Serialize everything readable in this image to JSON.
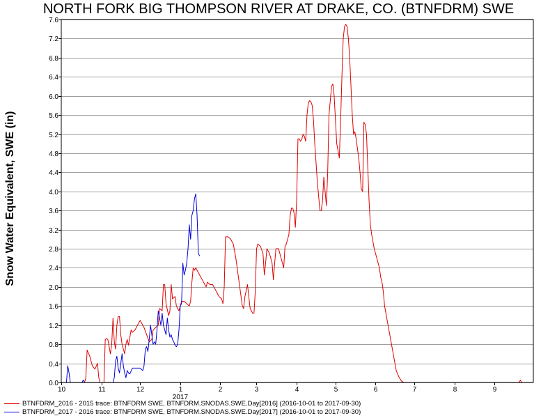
{
  "chart_data": {
    "type": "line",
    "title": "NORTH FORK BIG THOMPSON RIVER AT DRAKE, CO. (BTNFDRM) SWE",
    "ylabel": "Snow Water Equivalent, SWE (in)",
    "xlabel": "",
    "ylim": [
      0,
      7.6
    ],
    "xlim": [
      "2016-10-01",
      "2017-09-30"
    ],
    "y_ticks": [
      "0.0",
      "0.4",
      "0.8",
      "1.2",
      "1.6",
      "2.0",
      "2.4",
      "2.8",
      "3.2",
      "3.6",
      "4.0",
      "4.4",
      "4.8",
      "5.2",
      "5.6",
      "6.0",
      "6.4",
      "6.8",
      "7.2",
      "7.6"
    ],
    "x_ticks": [
      {
        "date": "2016-10-01",
        "label": "10"
      },
      {
        "date": "2016-11-01",
        "label": "11"
      },
      {
        "date": "2016-12-01",
        "label": "12"
      },
      {
        "date": "2017-01-01",
        "label": "1"
      },
      {
        "date": "2017-02-01",
        "label": "2"
      },
      {
        "date": "2017-03-01",
        "label": "3"
      },
      {
        "date": "2017-04-01",
        "label": "4"
      },
      {
        "date": "2017-05-01",
        "label": "5"
      },
      {
        "date": "2017-06-01",
        "label": "6"
      },
      {
        "date": "2017-07-01",
        "label": "7"
      },
      {
        "date": "2017-08-01",
        "label": "8"
      },
      {
        "date": "2017-09-01",
        "label": "9"
      }
    ],
    "year_label": {
      "date": "2017-01-01",
      "label": "2017"
    },
    "grid": true,
    "legend_position": "bottom",
    "series": [
      {
        "name": "BTNFDRM_2016 - 2015 trace: BTNFDRM SWE, BTNFDRM.SNODAS.SWE.Day[2016] (2016-10-01 to 2017-09-30)",
        "color": "#e00000",
        "points": [
          [
            "2016-10-01",
            0
          ],
          [
            "2016-10-19",
            0
          ],
          [
            "2016-10-20",
            0.1
          ],
          [
            "2016-10-21",
            0.68
          ],
          [
            "2016-10-23",
            0.55
          ],
          [
            "2016-10-25",
            0.35
          ],
          [
            "2016-10-27",
            0.28
          ],
          [
            "2016-10-29",
            0.4
          ],
          [
            "2016-10-30",
            0.1
          ],
          [
            "2016-10-31",
            0
          ],
          [
            "2016-11-03",
            0
          ],
          [
            "2016-11-04",
            0.9
          ],
          [
            "2016-11-05",
            0.92
          ],
          [
            "2016-11-06",
            0.9
          ],
          [
            "2016-11-07",
            0.75
          ],
          [
            "2016-11-08",
            0.6
          ],
          [
            "2016-11-09",
            0.8
          ],
          [
            "2016-11-10",
            1.35
          ],
          [
            "2016-11-11",
            0.85
          ],
          [
            "2016-11-12",
            0.7
          ],
          [
            "2016-11-13",
            1.2
          ],
          [
            "2016-11-14",
            1.38
          ],
          [
            "2016-11-15",
            1.38
          ],
          [
            "2016-11-16",
            1.0
          ],
          [
            "2016-11-17",
            0.8
          ],
          [
            "2016-11-18",
            0.7
          ],
          [
            "2016-11-19",
            0.6
          ],
          [
            "2016-11-20",
            0.8
          ],
          [
            "2016-11-21",
            0.9
          ],
          [
            "2016-11-22",
            0.78
          ],
          [
            "2016-11-24",
            1.1
          ],
          [
            "2016-11-25",
            1.05
          ],
          [
            "2016-11-27",
            1.1
          ],
          [
            "2016-11-29",
            1.2
          ],
          [
            "2016-12-01",
            1.3
          ],
          [
            "2016-12-04",
            1.15
          ],
          [
            "2016-12-06",
            1.0
          ],
          [
            "2016-12-08",
            0.85
          ],
          [
            "2016-12-10",
            0.9
          ],
          [
            "2016-12-11",
            1.1
          ],
          [
            "2016-12-13",
            1.15
          ],
          [
            "2016-12-15",
            1.2
          ],
          [
            "2016-12-16",
            1.55
          ],
          [
            "2016-12-18",
            1.5
          ],
          [
            "2016-12-19",
            2.05
          ],
          [
            "2016-12-20",
            2.05
          ],
          [
            "2016-12-21",
            1.65
          ],
          [
            "2016-12-23",
            1.4
          ],
          [
            "2016-12-24",
            1.5
          ],
          [
            "2016-12-25",
            2.05
          ],
          [
            "2016-12-26",
            1.75
          ],
          [
            "2016-12-28",
            1.8
          ],
          [
            "2016-12-29",
            1.6
          ],
          [
            "2016-12-31",
            1.5
          ],
          [
            "2017-01-02",
            1.7
          ],
          [
            "2017-01-04",
            1.7
          ],
          [
            "2017-01-06",
            1.65
          ],
          [
            "2017-01-08",
            1.6
          ],
          [
            "2017-01-09",
            1.7
          ],
          [
            "2017-01-10",
            2.1
          ],
          [
            "2017-01-11",
            2.4
          ],
          [
            "2017-01-12",
            2.35
          ],
          [
            "2017-01-13",
            2.4
          ],
          [
            "2017-01-15",
            2.3
          ],
          [
            "2017-01-17",
            2.2
          ],
          [
            "2017-01-19",
            2.1
          ],
          [
            "2017-01-21",
            2.0
          ],
          [
            "2017-01-22",
            2.1
          ],
          [
            "2017-01-24",
            2.05
          ],
          [
            "2017-01-26",
            2.05
          ],
          [
            "2017-01-27",
            2.0
          ],
          [
            "2017-01-29",
            1.9
          ],
          [
            "2017-01-31",
            1.8
          ],
          [
            "2017-02-02",
            1.75
          ],
          [
            "2017-02-03",
            1.65
          ],
          [
            "2017-02-04",
            2.0
          ],
          [
            "2017-02-05",
            3.05
          ],
          [
            "2017-02-07",
            3.05
          ],
          [
            "2017-02-09",
            3.0
          ],
          [
            "2017-02-11",
            2.9
          ],
          [
            "2017-02-13",
            2.6
          ],
          [
            "2017-02-15",
            2.2
          ],
          [
            "2017-02-17",
            1.8
          ],
          [
            "2017-02-18",
            1.6
          ],
          [
            "2017-02-19",
            1.55
          ],
          [
            "2017-02-20",
            1.8
          ],
          [
            "2017-02-22",
            2.05
          ],
          [
            "2017-02-23",
            1.8
          ],
          [
            "2017-02-24",
            1.55
          ],
          [
            "2017-02-26",
            1.45
          ],
          [
            "2017-02-27",
            1.45
          ],
          [
            "2017-02-28",
            1.9
          ],
          [
            "2017-03-01",
            2.8
          ],
          [
            "2017-03-02",
            2.9
          ],
          [
            "2017-03-04",
            2.85
          ],
          [
            "2017-03-06",
            2.7
          ],
          [
            "2017-03-07",
            2.25
          ],
          [
            "2017-03-08",
            2.5
          ],
          [
            "2017-03-09",
            2.8
          ],
          [
            "2017-03-11",
            2.7
          ],
          [
            "2017-03-13",
            2.5
          ],
          [
            "2017-03-14",
            2.15
          ],
          [
            "2017-03-15",
            2.5
          ],
          [
            "2017-03-16",
            2.8
          ],
          [
            "2017-03-18",
            2.8
          ],
          [
            "2017-03-20",
            2.6
          ],
          [
            "2017-03-22",
            2.4
          ],
          [
            "2017-03-23",
            2.85
          ],
          [
            "2017-03-24",
            2.9
          ],
          [
            "2017-03-26",
            3.1
          ],
          [
            "2017-03-27",
            3.5
          ],
          [
            "2017-03-28",
            3.65
          ],
          [
            "2017-03-29",
            3.65
          ],
          [
            "2017-03-30",
            3.55
          ],
          [
            "2017-03-31",
            3.25
          ],
          [
            "2017-04-01",
            3.8
          ],
          [
            "2017-04-02",
            5.1
          ],
          [
            "2017-04-03",
            5.1
          ],
          [
            "2017-04-04",
            5.05
          ],
          [
            "2017-04-05",
            5.1
          ],
          [
            "2017-04-06",
            5.2
          ],
          [
            "2017-04-07",
            5.15
          ],
          [
            "2017-04-08",
            5.05
          ],
          [
            "2017-04-09",
            5.6
          ],
          [
            "2017-04-10",
            5.85
          ],
          [
            "2017-04-11",
            5.9
          ],
          [
            "2017-04-12",
            5.88
          ],
          [
            "2017-04-13",
            5.8
          ],
          [
            "2017-04-14",
            5.5
          ],
          [
            "2017-04-15",
            5.0
          ],
          [
            "2017-04-16",
            4.6
          ],
          [
            "2017-04-17",
            4.2
          ],
          [
            "2017-04-18",
            3.9
          ],
          [
            "2017-04-19",
            3.6
          ],
          [
            "2017-04-20",
            3.6
          ],
          [
            "2017-04-21",
            3.8
          ],
          [
            "2017-04-22",
            4.3
          ],
          [
            "2017-04-23",
            4.0
          ],
          [
            "2017-04-24",
            3.7
          ],
          [
            "2017-04-25",
            4.4
          ],
          [
            "2017-04-26",
            5.6
          ],
          [
            "2017-04-27",
            5.9
          ],
          [
            "2017-04-28",
            6.2
          ],
          [
            "2017-04-29",
            6.25
          ],
          [
            "2017-04-30",
            6.0
          ],
          [
            "2017-05-01",
            5.5
          ],
          [
            "2017-05-02",
            5.0
          ],
          [
            "2017-05-03",
            4.85
          ],
          [
            "2017-05-04",
            4.7
          ],
          [
            "2017-05-05",
            5.5
          ],
          [
            "2017-05-06",
            6.4
          ],
          [
            "2017-05-07",
            7.2
          ],
          [
            "2017-05-08",
            7.45
          ],
          [
            "2017-05-09",
            7.5
          ],
          [
            "2017-05-10",
            7.45
          ],
          [
            "2017-05-11",
            7.2
          ],
          [
            "2017-05-12",
            6.8
          ],
          [
            "2017-05-13",
            6.2
          ],
          [
            "2017-05-14",
            5.6
          ],
          [
            "2017-05-15",
            5.2
          ],
          [
            "2017-05-16",
            5.25
          ],
          [
            "2017-05-17",
            5.1
          ],
          [
            "2017-05-18",
            4.9
          ],
          [
            "2017-05-19",
            4.7
          ],
          [
            "2017-05-20",
            4.4
          ],
          [
            "2017-05-21",
            4.05
          ],
          [
            "2017-05-22",
            4.0
          ],
          [
            "2017-05-23",
            5.45
          ],
          [
            "2017-05-24",
            5.4
          ],
          [
            "2017-05-25",
            5.2
          ],
          [
            "2017-05-26",
            4.5
          ],
          [
            "2017-05-27",
            3.8
          ],
          [
            "2017-05-28",
            3.3
          ],
          [
            "2017-05-29",
            3.1
          ],
          [
            "2017-05-30",
            2.95
          ],
          [
            "2017-05-31",
            2.8
          ],
          [
            "2017-06-02",
            2.6
          ],
          [
            "2017-06-04",
            2.4
          ],
          [
            "2017-06-05",
            2.2
          ],
          [
            "2017-06-06",
            2.1
          ],
          [
            "2017-06-07",
            1.9
          ],
          [
            "2017-06-08",
            1.6
          ],
          [
            "2017-06-09",
            1.45
          ],
          [
            "2017-06-10",
            1.3
          ],
          [
            "2017-06-12",
            1.0
          ],
          [
            "2017-06-14",
            0.7
          ],
          [
            "2017-06-16",
            0.4
          ],
          [
            "2017-06-17",
            0.25
          ],
          [
            "2017-06-19",
            0.12
          ],
          [
            "2017-06-21",
            0.03
          ],
          [
            "2017-06-23",
            0
          ],
          [
            "2017-09-20",
            0
          ],
          [
            "2017-09-21",
            0.05
          ],
          [
            "2017-09-22",
            0
          ]
        ]
      },
      {
        "name": "BTNFDRM_2017 - 2016 trace: BTNFDRM SWE, BTNFDRM.SNODAS.SWE.Day[2017] (2016-10-01 to 2017-09-30)",
        "color": "#0000d8",
        "points": [
          [
            "2016-10-01",
            0
          ],
          [
            "2016-10-05",
            0
          ],
          [
            "2016-10-06",
            0.35
          ],
          [
            "2016-10-07",
            0.2
          ],
          [
            "2016-10-08",
            0
          ],
          [
            "2016-10-17",
            0
          ],
          [
            "2016-10-18",
            0.05
          ],
          [
            "2016-10-19",
            0
          ],
          [
            "2016-11-10",
            0
          ],
          [
            "2016-11-11",
            0.1
          ],
          [
            "2016-11-12",
            0.45
          ],
          [
            "2016-11-13",
            0.55
          ],
          [
            "2016-11-14",
            0.3
          ],
          [
            "2016-11-15",
            0.2
          ],
          [
            "2016-11-16",
            0.4
          ],
          [
            "2016-11-17",
            0.6
          ],
          [
            "2016-11-18",
            0.35
          ],
          [
            "2016-11-19",
            0.2
          ],
          [
            "2016-11-20",
            0.1
          ],
          [
            "2016-11-21",
            0.25
          ],
          [
            "2016-11-22",
            0.2
          ],
          [
            "2016-11-23",
            0.18
          ],
          [
            "2016-11-25",
            0.3
          ],
          [
            "2016-11-27",
            0.3
          ],
          [
            "2016-11-29",
            0.3
          ],
          [
            "2016-12-01",
            0.3
          ],
          [
            "2016-12-03",
            0.25
          ],
          [
            "2016-12-04",
            0.35
          ],
          [
            "2016-12-05",
            0.7
          ],
          [
            "2016-12-06",
            0.75
          ],
          [
            "2016-12-07",
            0.65
          ],
          [
            "2016-12-08",
            0.9
          ],
          [
            "2016-12-09",
            1.2
          ],
          [
            "2016-12-10",
            1.0
          ],
          [
            "2016-12-11",
            0.8
          ],
          [
            "2016-12-12",
            0.85
          ],
          [
            "2016-12-13",
            0.8
          ],
          [
            "2016-12-14",
            1.1
          ],
          [
            "2016-12-15",
            1.5
          ],
          [
            "2016-12-16",
            1.35
          ],
          [
            "2016-12-17",
            1.2
          ],
          [
            "2016-12-18",
            1.45
          ],
          [
            "2016-12-19",
            1.2
          ],
          [
            "2016-12-20",
            1.1
          ],
          [
            "2016-12-21",
            1.0
          ],
          [
            "2016-12-22",
            1.35
          ],
          [
            "2016-12-23",
            1.1
          ],
          [
            "2016-12-24",
            0.95
          ],
          [
            "2016-12-25",
            1.0
          ],
          [
            "2016-12-26",
            0.9
          ],
          [
            "2016-12-27",
            0.85
          ],
          [
            "2016-12-28",
            0.78
          ],
          [
            "2016-12-29",
            0.75
          ],
          [
            "2016-12-30",
            0.8
          ],
          [
            "2016-12-31",
            1.1
          ],
          [
            "2017-01-01",
            1.6
          ],
          [
            "2017-01-02",
            1.65
          ],
          [
            "2017-01-03",
            2.5
          ],
          [
            "2017-01-04",
            2.25
          ],
          [
            "2017-01-05",
            2.35
          ],
          [
            "2017-01-06",
            2.5
          ],
          [
            "2017-01-07",
            2.8
          ],
          [
            "2017-01-08",
            3.3
          ],
          [
            "2017-01-09",
            3.0
          ],
          [
            "2017-01-10",
            3.5
          ],
          [
            "2017-01-11",
            3.6
          ],
          [
            "2017-01-12",
            3.85
          ],
          [
            "2017-01-13",
            3.95
          ],
          [
            "2017-01-14",
            3.5
          ],
          [
            "2017-01-15",
            2.7
          ],
          [
            "2017-01-16",
            2.65
          ]
        ]
      }
    ]
  }
}
